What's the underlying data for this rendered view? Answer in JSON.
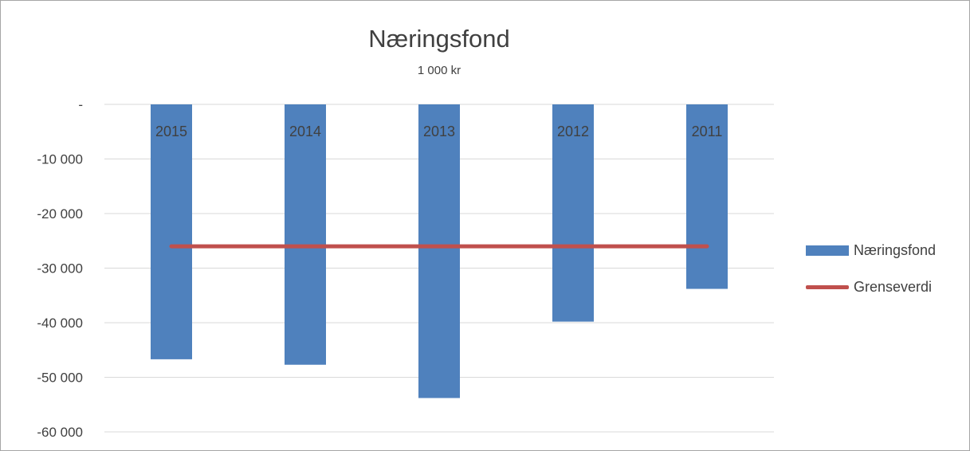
{
  "chart_data": {
    "type": "bar",
    "title": "Næringsfond",
    "subtitle": "1 000 kr",
    "categories": [
      "2015",
      "2014",
      "2013",
      "2012",
      "2011"
    ],
    "series": [
      {
        "name": "Næringsfond",
        "type": "bar",
        "color": "#4f81bd",
        "values": [
          -46700,
          -47700,
          -53800,
          -39800,
          -33800
        ]
      },
      {
        "name": "Grenseverdi",
        "type": "line",
        "color": "#c0504d",
        "values": [
          -26000,
          -26000,
          -26000,
          -26000,
          -26000
        ]
      }
    ],
    "yticks": [
      0,
      -10000,
      -20000,
      -30000,
      -40000,
      -50000,
      -60000
    ],
    "ytick_labels": [
      "-",
      "-10 000",
      "-20 000",
      "-30 000",
      "-40 000",
      "-50 000",
      "-60 000"
    ],
    "ylim": [
      -60000,
      0
    ],
    "grid": true,
    "legend_position": "right"
  }
}
